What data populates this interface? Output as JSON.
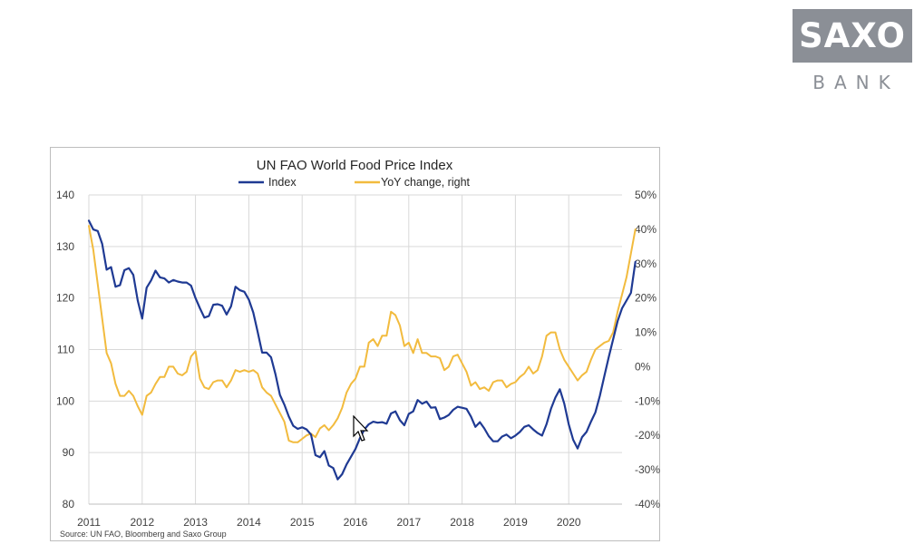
{
  "logo": {
    "main": "SAXO",
    "sub": "BANK"
  },
  "chart_data": {
    "type": "line",
    "title": "UN FAO World Food Price Index",
    "source": "Source:  UN FAO, Bloomberg  and Saxo Group",
    "left_axis": {
      "ticks": [
        "140",
        "130",
        "120",
        "110",
        "100",
        "90",
        "80"
      ],
      "ylim": [
        80,
        140
      ]
    },
    "right_axis": {
      "ticks": [
        "50%",
        "40%",
        "30%",
        "20%",
        "10%",
        "0%",
        "-10%",
        "-20%",
        "-30%",
        "-40%"
      ],
      "ylim": [
        -40,
        50
      ]
    },
    "x_ticks": [
      "2011",
      "2012",
      "2013",
      "2014",
      "2015",
      "2016",
      "2017",
      "2018",
      "2019",
      "2020"
    ],
    "x_range": [
      "2011-01",
      "2021-01"
    ],
    "grid": true,
    "legend_position": "top",
    "series": [
      {
        "name": "Index",
        "axis": "left",
        "color": "#1f3a93",
        "points": [
          [
            "2011-01",
            135
          ],
          [
            "2011-02",
            133.3
          ],
          [
            "2011-03",
            133
          ],
          [
            "2011-04",
            130.5
          ],
          [
            "2011-05",
            125.5
          ],
          [
            "2011-06",
            126
          ],
          [
            "2011-07",
            122.2
          ],
          [
            "2011-08",
            122.5
          ],
          [
            "2011-09",
            125.4
          ],
          [
            "2011-10",
            125.8
          ],
          [
            "2011-11",
            124.5
          ],
          [
            "2011-12",
            119.5
          ],
          [
            "2012-01",
            116
          ],
          [
            "2012-02",
            122
          ],
          [
            "2012-03",
            123.4
          ],
          [
            "2012-04",
            125.3
          ],
          [
            "2012-05",
            124
          ],
          [
            "2012-06",
            123.8
          ],
          [
            "2012-07",
            123
          ],
          [
            "2012-08",
            123.5
          ],
          [
            "2012-09",
            123.2
          ],
          [
            "2012-10",
            123
          ],
          [
            "2012-11",
            123
          ],
          [
            "2012-12",
            122.4
          ],
          [
            "2013-01",
            120
          ],
          [
            "2013-02",
            118
          ],
          [
            "2013-03",
            116.2
          ],
          [
            "2013-04",
            116.5
          ],
          [
            "2013-05",
            118.7
          ],
          [
            "2013-06",
            118.8
          ],
          [
            "2013-07",
            118.5
          ],
          [
            "2013-08",
            116.8
          ],
          [
            "2013-09",
            118.4
          ],
          [
            "2013-10",
            122.2
          ],
          [
            "2013-11",
            121.5
          ],
          [
            "2013-12",
            121.2
          ],
          [
            "2014-01",
            119.7
          ],
          [
            "2014-02",
            117.2
          ],
          [
            "2014-03",
            113.4
          ],
          [
            "2014-04",
            109.4
          ],
          [
            "2014-05",
            109.4
          ],
          [
            "2014-06",
            108.5
          ],
          [
            "2014-07",
            105.2
          ],
          [
            "2014-08",
            101.2
          ],
          [
            "2014-09",
            99.3
          ],
          [
            "2014-10",
            97
          ],
          [
            "2014-11",
            95.2
          ],
          [
            "2014-12",
            94.6
          ],
          [
            "2015-01",
            94.9
          ],
          [
            "2015-02",
            94.5
          ],
          [
            "2015-03",
            93.5
          ],
          [
            "2015-04",
            89.5
          ],
          [
            "2015-05",
            89.1
          ],
          [
            "2015-06",
            90.3
          ],
          [
            "2015-07",
            87.5
          ],
          [
            "2015-08",
            87
          ],
          [
            "2015-09",
            84.8
          ],
          [
            "2015-10",
            85.8
          ],
          [
            "2015-11",
            87.7
          ],
          [
            "2015-12",
            89.2
          ],
          [
            "2016-01",
            90.7
          ],
          [
            "2016-02",
            92.8
          ],
          [
            "2016-03",
            94.5
          ],
          [
            "2016-04",
            95.5
          ],
          [
            "2016-05",
            96
          ],
          [
            "2016-06",
            95.8
          ],
          [
            "2016-07",
            95.9
          ],
          [
            "2016-08",
            95.6
          ],
          [
            "2016-09",
            97.6
          ],
          [
            "2016-10",
            98
          ],
          [
            "2016-11",
            96.3
          ],
          [
            "2016-12",
            95.3
          ],
          [
            "2017-01",
            97.5
          ],
          [
            "2017-02",
            98
          ],
          [
            "2017-03",
            100.2
          ],
          [
            "2017-04",
            99.5
          ],
          [
            "2017-05",
            99.9
          ],
          [
            "2017-06",
            98.7
          ],
          [
            "2017-07",
            98.8
          ],
          [
            "2017-08",
            96.5
          ],
          [
            "2017-09",
            96.8
          ],
          [
            "2017-10",
            97.3
          ],
          [
            "2017-11",
            98.3
          ],
          [
            "2017-12",
            98.9
          ],
          [
            "2018-01",
            98.7
          ],
          [
            "2018-02",
            98.5
          ],
          [
            "2018-03",
            97
          ],
          [
            "2018-04",
            95
          ],
          [
            "2018-05",
            95.9
          ],
          [
            "2018-06",
            94.7
          ],
          [
            "2018-07",
            93.2
          ],
          [
            "2018-08",
            92.2
          ],
          [
            "2018-09",
            92.2
          ],
          [
            "2018-10",
            93.1
          ],
          [
            "2018-11",
            93.5
          ],
          [
            "2018-12",
            92.8
          ],
          [
            "2019-01",
            93.3
          ],
          [
            "2019-02",
            94
          ],
          [
            "2019-03",
            95
          ],
          [
            "2019-04",
            95.3
          ],
          [
            "2019-05",
            94.5
          ],
          [
            "2019-06",
            93.8
          ],
          [
            "2019-07",
            93.3
          ],
          [
            "2019-08",
            95.5
          ],
          [
            "2019-09",
            98.5
          ],
          [
            "2019-10",
            100.7
          ],
          [
            "2019-11",
            102.3
          ],
          [
            "2019-12",
            99.5
          ],
          [
            "2020-01",
            95.5
          ],
          [
            "2020-02",
            92.5
          ],
          [
            "2020-03",
            90.8
          ],
          [
            "2020-04",
            93
          ],
          [
            "2020-05",
            94
          ],
          [
            "2020-06",
            96
          ],
          [
            "2020-07",
            97.8
          ],
          [
            "2020-08",
            101
          ],
          [
            "2020-09",
            104.8
          ],
          [
            "2020-10",
            108.5
          ],
          [
            "2020-11",
            112
          ],
          [
            "2020-12",
            115.5
          ],
          [
            "2021-01",
            118
          ],
          [
            "2021-02",
            119.5
          ],
          [
            "2021-03",
            121
          ],
          [
            "2021-04",
            127
          ]
        ]
      },
      {
        "name": "YoY change, right",
        "axis": "right",
        "color": "#f2bb3e",
        "points": [
          [
            "2011-01",
            41
          ],
          [
            "2011-02",
            34
          ],
          [
            "2011-03",
            24
          ],
          [
            "2011-04",
            14
          ],
          [
            "2011-05",
            4
          ],
          [
            "2011-06",
            1
          ],
          [
            "2011-07",
            -5
          ],
          [
            "2011-08",
            -8.5
          ],
          [
            "2011-09",
            -8.5
          ],
          [
            "2011-10",
            -7
          ],
          [
            "2011-11",
            -8.5
          ],
          [
            "2011-12",
            -11.5
          ],
          [
            "2012-01",
            -14
          ],
          [
            "2012-02",
            -8.5
          ],
          [
            "2012-03",
            -7.5
          ],
          [
            "2012-04",
            -5
          ],
          [
            "2012-05",
            -3
          ],
          [
            "2012-06",
            -3
          ],
          [
            "2012-07",
            0
          ],
          [
            "2012-08",
            0
          ],
          [
            "2012-09",
            -2
          ],
          [
            "2012-10",
            -2.5
          ],
          [
            "2012-11",
            -1.5
          ],
          [
            "2012-12",
            3
          ],
          [
            "2013-01",
            4.5
          ],
          [
            "2013-02",
            -3.5
          ],
          [
            "2013-03",
            -6
          ],
          [
            "2013-04",
            -6.5
          ],
          [
            "2013-05",
            -4.5
          ],
          [
            "2013-06",
            -4
          ],
          [
            "2013-07",
            -4
          ],
          [
            "2013-08",
            -6
          ],
          [
            "2013-09",
            -4
          ],
          [
            "2013-10",
            -1
          ],
          [
            "2013-11",
            -1.5
          ],
          [
            "2013-12",
            -1
          ],
          [
            "2014-01",
            -1.5
          ],
          [
            "2014-02",
            -1
          ],
          [
            "2014-03",
            -2
          ],
          [
            "2014-04",
            -6
          ],
          [
            "2014-05",
            -7.5
          ],
          [
            "2014-06",
            -8.5
          ],
          [
            "2014-07",
            -11
          ],
          [
            "2014-08",
            -13.5
          ],
          [
            "2014-09",
            -16
          ],
          [
            "2014-10",
            -21.5
          ],
          [
            "2014-11",
            -22
          ],
          [
            "2014-12",
            -22
          ],
          [
            "2015-01",
            -21
          ],
          [
            "2015-02",
            -20
          ],
          [
            "2015-03",
            -19.5
          ],
          [
            "2015-04",
            -20.5
          ],
          [
            "2015-05",
            -18
          ],
          [
            "2015-06",
            -17
          ],
          [
            "2015-07",
            -18.5
          ],
          [
            "2015-08",
            -17
          ],
          [
            "2015-09",
            -15
          ],
          [
            "2015-10",
            -12
          ],
          [
            "2015-11",
            -7.5
          ],
          [
            "2015-12",
            -5
          ],
          [
            "2016-01",
            -3.5
          ],
          [
            "2016-02",
            0
          ],
          [
            "2016-03",
            0
          ],
          [
            "2016-04",
            7
          ],
          [
            "2016-05",
            8
          ],
          [
            "2016-06",
            6
          ],
          [
            "2016-07",
            9
          ],
          [
            "2016-08",
            9
          ],
          [
            "2016-09",
            16
          ],
          [
            "2016-10",
            15
          ],
          [
            "2016-11",
            12
          ],
          [
            "2016-12",
            6
          ],
          [
            "2017-01",
            7
          ],
          [
            "2017-02",
            4
          ],
          [
            "2017-03",
            8
          ],
          [
            "2017-04",
            4
          ],
          [
            "2017-05",
            4
          ],
          [
            "2017-06",
            3
          ],
          [
            "2017-07",
            3
          ],
          [
            "2017-08",
            2.5
          ],
          [
            "2017-09",
            -1
          ],
          [
            "2017-10",
            0
          ],
          [
            "2017-11",
            3
          ],
          [
            "2017-12",
            3.5
          ],
          [
            "2018-01",
            1
          ],
          [
            "2018-02",
            -1.5
          ],
          [
            "2018-03",
            -5.5
          ],
          [
            "2018-04",
            -4.5
          ],
          [
            "2018-05",
            -6.5
          ],
          [
            "2018-06",
            -6
          ],
          [
            "2018-07",
            -7
          ],
          [
            "2018-08",
            -4.5
          ],
          [
            "2018-09",
            -4
          ],
          [
            "2018-10",
            -4
          ],
          [
            "2018-11",
            -6
          ],
          [
            "2018-12",
            -5
          ],
          [
            "2019-01",
            -4.5
          ],
          [
            "2019-02",
            -3
          ],
          [
            "2019-03",
            -2
          ],
          [
            "2019-04",
            0
          ],
          [
            "2019-05",
            -2
          ],
          [
            "2019-06",
            -1
          ],
          [
            "2019-07",
            3
          ],
          [
            "2019-08",
            9
          ],
          [
            "2019-09",
            10
          ],
          [
            "2019-10",
            10
          ],
          [
            "2019-11",
            5
          ],
          [
            "2019-12",
            2
          ],
          [
            "2020-01",
            0
          ],
          [
            "2020-02",
            -2
          ],
          [
            "2020-03",
            -4
          ],
          [
            "2020-04",
            -2.5
          ],
          [
            "2020-05",
            -1.5
          ],
          [
            "2020-06",
            2
          ],
          [
            "2020-07",
            5
          ],
          [
            "2020-08",
            6
          ],
          [
            "2020-09",
            7
          ],
          [
            "2020-10",
            7.5
          ],
          [
            "2020-11",
            10
          ],
          [
            "2020-12",
            16
          ],
          [
            "2021-01",
            21
          ],
          [
            "2021-02",
            26
          ],
          [
            "2021-03",
            33
          ],
          [
            "2021-04",
            40
          ]
        ]
      }
    ]
  }
}
